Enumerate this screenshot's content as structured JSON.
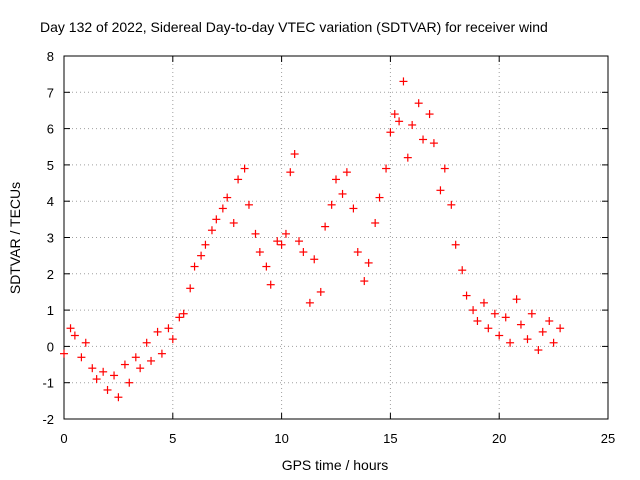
{
  "chart_data": {
    "type": "scatter",
    "title": "Day 132 of 2022, Sidereal Day-to-day VTEC variation (SDTVAR) for receiver wind",
    "xlabel": "GPS time / hours",
    "ylabel": "SDTVAR / TECUs",
    "xlim": [
      0,
      25
    ],
    "ylim": [
      -2,
      8
    ],
    "grid": true,
    "marker": "+",
    "color": "#ff0000",
    "x_ticks": [
      "0",
      "5",
      "10",
      "15",
      "20",
      "25"
    ],
    "y_ticks": [
      "-2",
      "-1",
      "0",
      "1",
      "2",
      "3",
      "4",
      "5",
      "6",
      "7",
      "8"
    ],
    "series": [
      {
        "name": "SDTVAR",
        "x": [
          0.0,
          0.3,
          0.5,
          0.8,
          1.0,
          1.3,
          1.5,
          1.8,
          2.0,
          2.3,
          2.5,
          2.8,
          3.0,
          3.3,
          3.5,
          3.8,
          4.0,
          4.3,
          4.5,
          4.8,
          5.0,
          5.3,
          5.5,
          5.8,
          6.0,
          6.3,
          6.5,
          6.8,
          7.0,
          7.3,
          7.5,
          7.8,
          8.0,
          8.3,
          8.5,
          8.8,
          9.0,
          9.3,
          9.5,
          9.8,
          10.0,
          10.2,
          10.4,
          10.6,
          10.8,
          11.0,
          11.3,
          11.5,
          11.8,
          12.0,
          12.3,
          12.5,
          12.8,
          13.0,
          13.3,
          13.5,
          13.8,
          14.0,
          14.3,
          14.5,
          14.8,
          15.0,
          15.2,
          15.4,
          15.6,
          15.8,
          16.0,
          16.3,
          16.5,
          16.8,
          17.0,
          17.3,
          17.5,
          17.8,
          18.0,
          18.3,
          18.5,
          18.8,
          19.0,
          19.3,
          19.5,
          19.8,
          20.0,
          20.3,
          20.5,
          20.8,
          21.0,
          21.3,
          21.5,
          21.8,
          22.0,
          22.3,
          22.5,
          22.8
        ],
        "y": [
          -0.2,
          0.5,
          0.3,
          -0.3,
          0.1,
          -0.6,
          -0.9,
          -0.7,
          -1.2,
          -0.8,
          -1.4,
          -0.5,
          -1.0,
          -0.3,
          -0.6,
          0.1,
          -0.4,
          0.4,
          -0.2,
          0.5,
          0.2,
          0.8,
          0.9,
          1.6,
          2.2,
          2.5,
          2.8,
          3.2,
          3.5,
          3.8,
          4.1,
          3.4,
          4.6,
          4.9,
          3.9,
          3.1,
          2.6,
          2.2,
          1.7,
          2.9,
          2.8,
          3.1,
          4.8,
          5.3,
          2.9,
          2.6,
          1.2,
          2.4,
          1.5,
          3.3,
          3.9,
          4.6,
          4.2,
          4.8,
          3.8,
          2.6,
          1.8,
          2.3,
          3.4,
          4.1,
          4.9,
          5.9,
          6.4,
          6.2,
          7.3,
          5.2,
          6.1,
          6.7,
          5.7,
          6.4,
          5.6,
          4.3,
          4.9,
          3.9,
          2.8,
          2.1,
          1.4,
          1.0,
          0.7,
          1.2,
          0.5,
          0.9,
          0.3,
          0.8,
          0.1,
          1.3,
          0.6,
          0.2,
          0.9,
          -0.1,
          0.4,
          0.7,
          0.1,
          0.5
        ]
      }
    ]
  }
}
